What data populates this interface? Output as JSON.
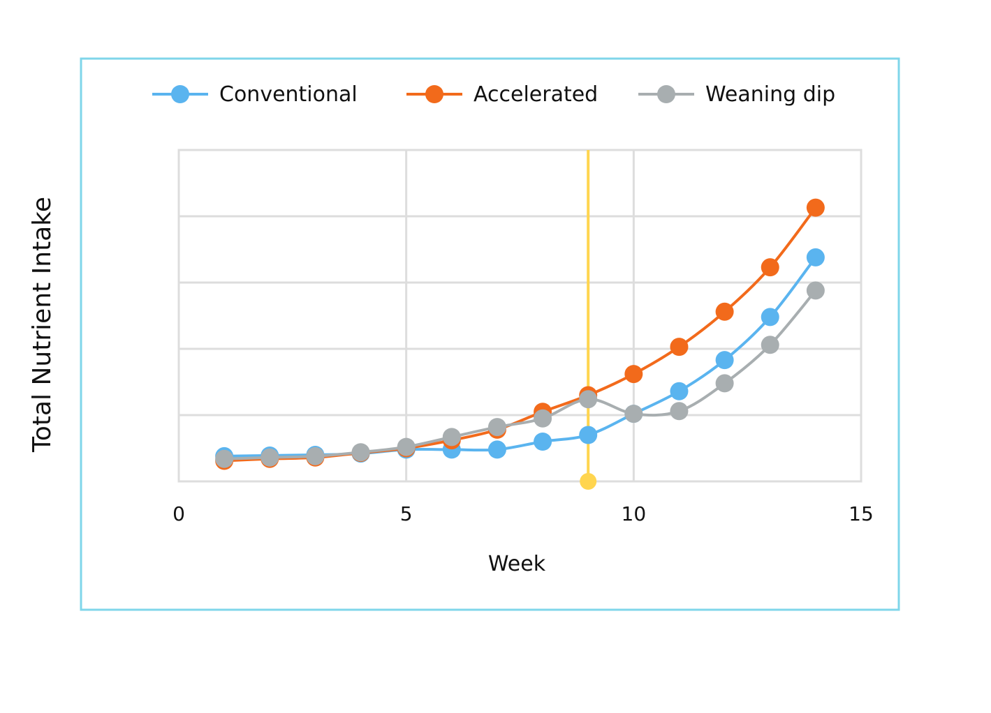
{
  "colors": {
    "frame": "#7fd6ea",
    "grid": "#dddddd",
    "marker_line": "#ffd54f",
    "conventional": "#5ab4ef",
    "accelerated": "#f26a1b",
    "weaning_dip": "#a8aeb0"
  },
  "chart_data": {
    "type": "line",
    "xlabel": "Week",
    "ylabel": "Total Nutrient Intake",
    "xlim": [
      0,
      15
    ],
    "ylim": [
      0,
      5
    ],
    "x_ticks": [
      "0",
      "5",
      "10",
      "15"
    ],
    "y_ticks": [],
    "grid": true,
    "legend_position": "top",
    "vertical_marker": {
      "x": 9
    },
    "x": [
      1,
      2,
      3,
      4,
      5,
      6,
      7,
      8,
      9,
      10,
      11,
      12,
      13,
      14
    ],
    "series": [
      {
        "name": "Conventional",
        "color": "#5ab4ef",
        "values": [
          0.38,
          0.39,
          0.4,
          0.42,
          0.48,
          0.48,
          0.48,
          0.6,
          0.7,
          1.02,
          1.36,
          1.83,
          2.48,
          3.38
        ]
      },
      {
        "name": "Accelerated",
        "color": "#f26a1b",
        "values": [
          0.31,
          0.34,
          0.36,
          0.43,
          0.5,
          0.62,
          0.78,
          1.05,
          1.3,
          1.62,
          2.03,
          2.56,
          3.23,
          4.13
        ]
      },
      {
        "name": "Weaning dip",
        "color": "#a8aeb0",
        "values": [
          0.34,
          0.36,
          0.38,
          0.44,
          0.52,
          0.67,
          0.82,
          0.95,
          1.24,
          1.02,
          1.06,
          1.48,
          2.06,
          2.88
        ]
      }
    ]
  }
}
